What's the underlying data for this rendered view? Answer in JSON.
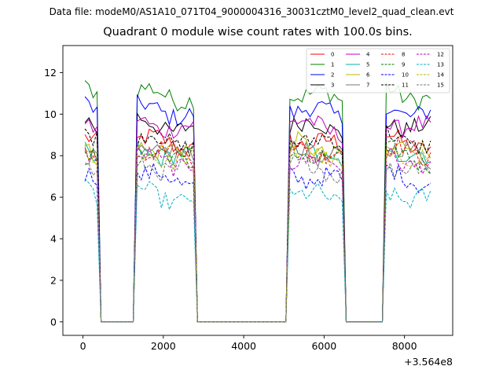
{
  "header": {
    "data_file": "Data file: modeM0/AS1A10_071T04_9000004316_30031cztM0_level2_quad_clean.evt"
  },
  "chart_data": {
    "type": "line",
    "title": "Quadrant 0 module wise count rates with 100.0s bins.",
    "xlabel": "",
    "ylabel": "",
    "x_offset_label": "+3.564e8",
    "xlim": [
      -500,
      9200
    ],
    "ylim": [
      -0.65,
      13.3
    ],
    "x_ticks": [
      0,
      2000,
      4000,
      6000,
      8000
    ],
    "x_tick_labels": [
      "0",
      "2000",
      "4000",
      "6000",
      "8000"
    ],
    "y_ticks": [
      0,
      2,
      4,
      6,
      8,
      10,
      12
    ],
    "y_tick_labels": [
      "0",
      "2",
      "4",
      "6",
      "8",
      "10",
      "12"
    ],
    "legend_position": "top-right",
    "x_bins_start": 50,
    "x_bins_step": 100,
    "on_intervals": [
      [
        50,
        400
      ],
      [
        1350,
        2750
      ],
      [
        5150,
        6450
      ],
      [
        7550,
        8650
      ]
    ],
    "ramp_points": [
      [
        450,
        0
      ],
      [
        1250,
        0
      ],
      [
        2850,
        0
      ],
      [
        2950,
        0
      ],
      [
        5050,
        0
      ],
      [
        6550,
        0
      ],
      [
        6650,
        0
      ],
      [
        7450,
        0
      ]
    ],
    "series": [
      {
        "name": "0",
        "color": "#ff0000",
        "dash": "solid",
        "level": 8.7
      },
      {
        "name": "1",
        "color": "#008000",
        "dash": "solid",
        "level": 11.0
      },
      {
        "name": "2",
        "color": "#0000ff",
        "dash": "solid",
        "level": 10.2
      },
      {
        "name": "3",
        "color": "#000000",
        "dash": "solid",
        "level": 9.5
      },
      {
        "name": "4",
        "color": "#c000c0",
        "dash": "solid",
        "level": 9.5
      },
      {
        "name": "5",
        "color": "#00b0a0",
        "dash": "solid",
        "level": 8.1
      },
      {
        "name": "6",
        "color": "#b8b800",
        "dash": "solid",
        "level": 8.4
      },
      {
        "name": "7",
        "color": "#777777",
        "dash": "solid",
        "level": 8.2
      },
      {
        "name": "8",
        "color": "#ff0000",
        "dash": "dashed",
        "level": 8.3
      },
      {
        "name": "9",
        "color": "#008000",
        "dash": "dashed",
        "level": 8.0
      },
      {
        "name": "10",
        "color": "#0000ff",
        "dash": "dashed",
        "level": 7.0
      },
      {
        "name": "11",
        "color": "#000000",
        "dash": "dashed",
        "level": 8.8
      },
      {
        "name": "12",
        "color": "#c000c0",
        "dash": "dashed",
        "level": 7.8
      },
      {
        "name": "13",
        "color": "#00b0c0",
        "dash": "dashed",
        "level": 6.1
      },
      {
        "name": "14",
        "color": "#b8b800",
        "dash": "dashed",
        "level": 8.0
      },
      {
        "name": "15",
        "color": "#777777",
        "dash": "dashed",
        "level": 7.5
      }
    ]
  }
}
